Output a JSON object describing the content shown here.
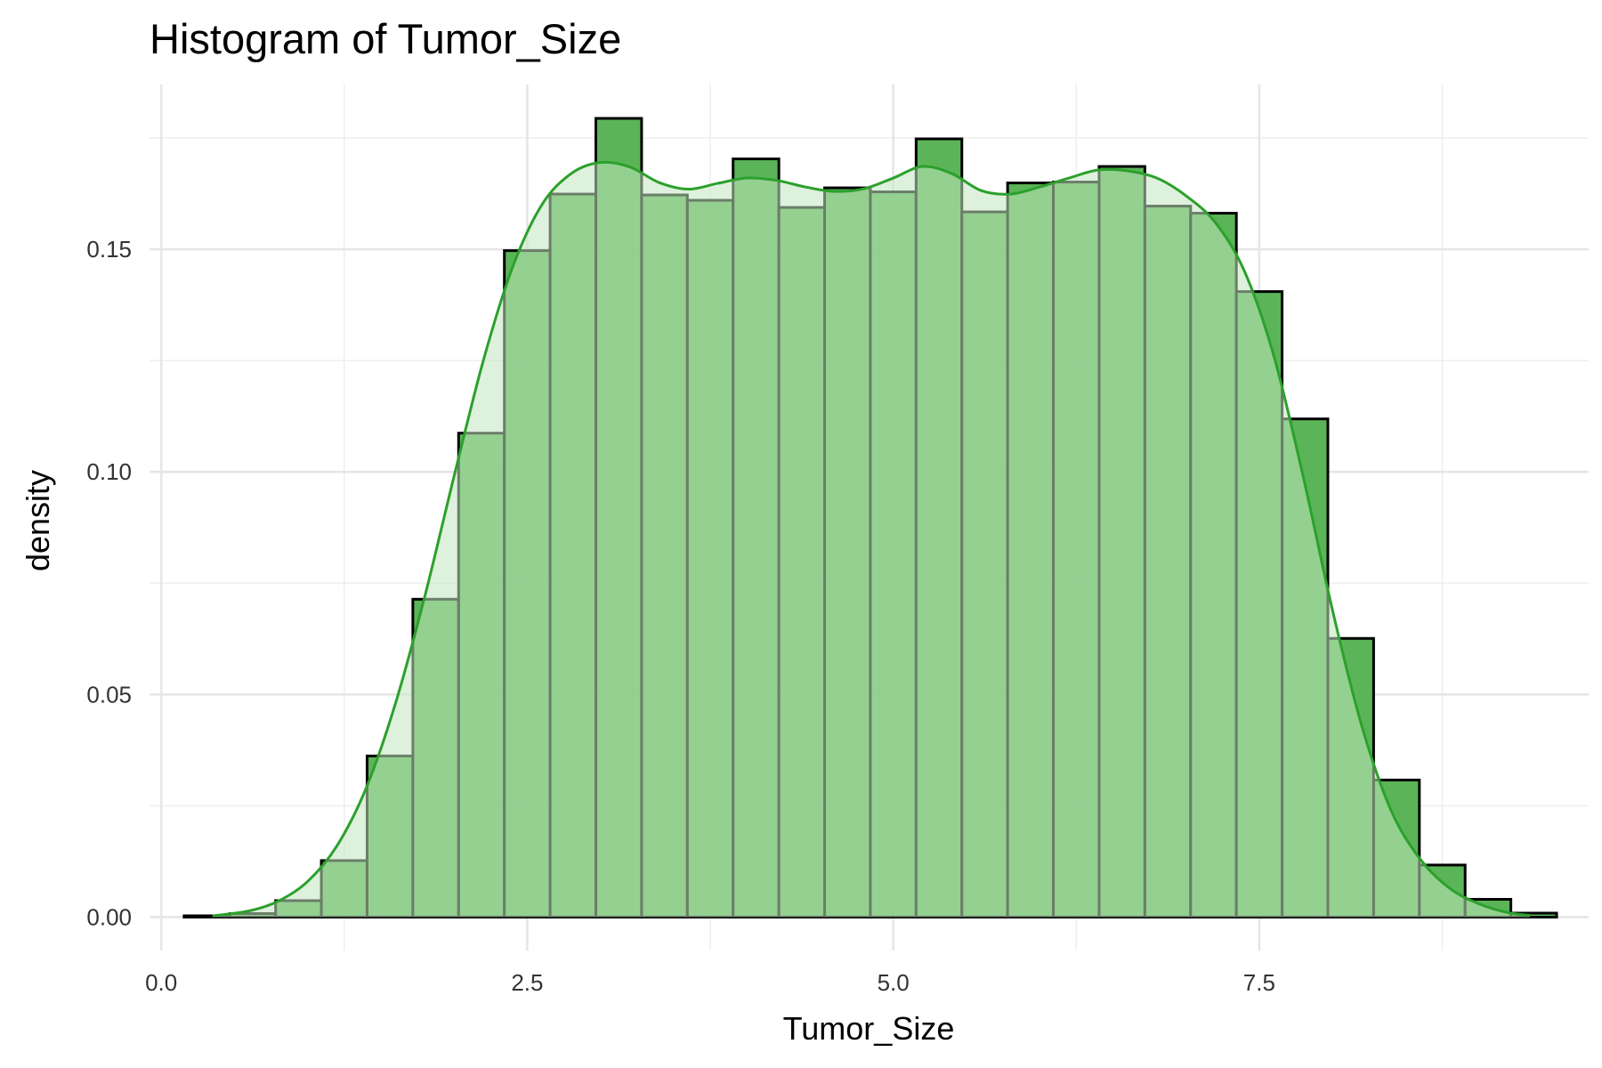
{
  "chart_data": {
    "type": "bar",
    "title": "Histogram of Tumor_Size",
    "xlabel": "Tumor_Size",
    "ylabel": "density",
    "xlim": [
      -0.08,
      9.75
    ],
    "ylim": [
      -0.0075,
      0.187
    ],
    "x_ticks": [
      0.0,
      2.5,
      5.0,
      7.5
    ],
    "x_tick_labels": [
      "0.0",
      "2.5",
      "5.0",
      "7.5"
    ],
    "y_ticks": [
      0.0,
      0.05,
      0.1,
      0.15
    ],
    "y_tick_labels": [
      "0.00",
      "0.05",
      "0.10",
      "0.15"
    ],
    "x_minor_ticks": [
      1.25,
      3.75,
      6.25,
      8.75
    ],
    "y_minor_ticks": [
      0.025,
      0.075,
      0.125,
      0.175
    ],
    "grid": true,
    "bin_width": 0.3125,
    "bins": [
      {
        "x0": 0.1562,
        "x1": 0.4687,
        "density": 0.0003
      },
      {
        "x0": 0.4687,
        "x1": 0.7812,
        "density": 0.0008
      },
      {
        "x0": 0.7812,
        "x1": 1.0937,
        "density": 0.0037
      },
      {
        "x0": 1.0937,
        "x1": 1.4062,
        "density": 0.0127
      },
      {
        "x0": 1.4062,
        "x1": 1.7187,
        "density": 0.0362
      },
      {
        "x0": 1.7187,
        "x1": 2.0312,
        "density": 0.0714
      },
      {
        "x0": 2.0312,
        "x1": 2.3437,
        "density": 0.1087
      },
      {
        "x0": 2.3437,
        "x1": 2.6562,
        "density": 0.1497
      },
      {
        "x0": 2.6562,
        "x1": 2.9687,
        "density": 0.1624
      },
      {
        "x0": 2.9687,
        "x1": 3.2812,
        "density": 0.1794
      },
      {
        "x0": 3.2812,
        "x1": 3.5937,
        "density": 0.1622
      },
      {
        "x0": 3.5937,
        "x1": 3.9062,
        "density": 0.161
      },
      {
        "x0": 3.9062,
        "x1": 4.2187,
        "density": 0.1703
      },
      {
        "x0": 4.2187,
        "x1": 4.5312,
        "density": 0.1594
      },
      {
        "x0": 4.5312,
        "x1": 4.8437,
        "density": 0.1638
      },
      {
        "x0": 4.8437,
        "x1": 5.1562,
        "density": 0.1629
      },
      {
        "x0": 5.1562,
        "x1": 5.4687,
        "density": 0.1748
      },
      {
        "x0": 5.4687,
        "x1": 5.7812,
        "density": 0.1584
      },
      {
        "x0": 5.7812,
        "x1": 6.0937,
        "density": 0.1649
      },
      {
        "x0": 6.0937,
        "x1": 6.4062,
        "density": 0.1651
      },
      {
        "x0": 6.4062,
        "x1": 6.7187,
        "density": 0.1686
      },
      {
        "x0": 6.7187,
        "x1": 7.0312,
        "density": 0.1597
      },
      {
        "x0": 7.0312,
        "x1": 7.3437,
        "density": 0.1581
      },
      {
        "x0": 7.3437,
        "x1": 7.6562,
        "density": 0.1405
      },
      {
        "x0": 7.6562,
        "x1": 7.9687,
        "density": 0.1119
      },
      {
        "x0": 7.9687,
        "x1": 8.2812,
        "density": 0.0626
      },
      {
        "x0": 8.2812,
        "x1": 8.5937,
        "density": 0.0308
      },
      {
        "x0": 8.5937,
        "x1": 8.9062,
        "density": 0.0117
      },
      {
        "x0": 8.9062,
        "x1": 9.2187,
        "density": 0.004
      },
      {
        "x0": 9.2187,
        "x1": 9.5312,
        "density": 0.0009
      }
    ],
    "density_curve": {
      "x": [
        0.35,
        0.6,
        0.8,
        1.0,
        1.2,
        1.4,
        1.6,
        1.8,
        2.0,
        2.2,
        2.4,
        2.6,
        2.8,
        3.0,
        3.2,
        3.4,
        3.6,
        3.8,
        4.0,
        4.2,
        4.4,
        4.6,
        4.8,
        5.0,
        5.2,
        5.4,
        5.6,
        5.8,
        6.0,
        6.2,
        6.4,
        6.6,
        6.8,
        7.0,
        7.2,
        7.4,
        7.6,
        7.8,
        8.0,
        8.2,
        8.4,
        8.6,
        8.8,
        9.0,
        9.2,
        9.35
      ],
      "y": [
        0.0003,
        0.0014,
        0.0036,
        0.008,
        0.016,
        0.029,
        0.048,
        0.072,
        0.099,
        0.125,
        0.146,
        0.16,
        0.167,
        0.1695,
        0.1685,
        0.165,
        0.1635,
        0.1648,
        0.166,
        0.1655,
        0.164,
        0.163,
        0.1636,
        0.166,
        0.1686,
        0.167,
        0.1632,
        0.1624,
        0.164,
        0.166,
        0.1678,
        0.1676,
        0.166,
        0.162,
        0.156,
        0.145,
        0.126,
        0.099,
        0.069,
        0.043,
        0.024,
        0.013,
        0.0065,
        0.003,
        0.001,
        0.0004
      ]
    },
    "colors": {
      "bar_fill": "#4daf4a",
      "bar_stroke": "#000000",
      "density_line": "#2ca02c",
      "density_fill": "#c3e6c0"
    }
  }
}
